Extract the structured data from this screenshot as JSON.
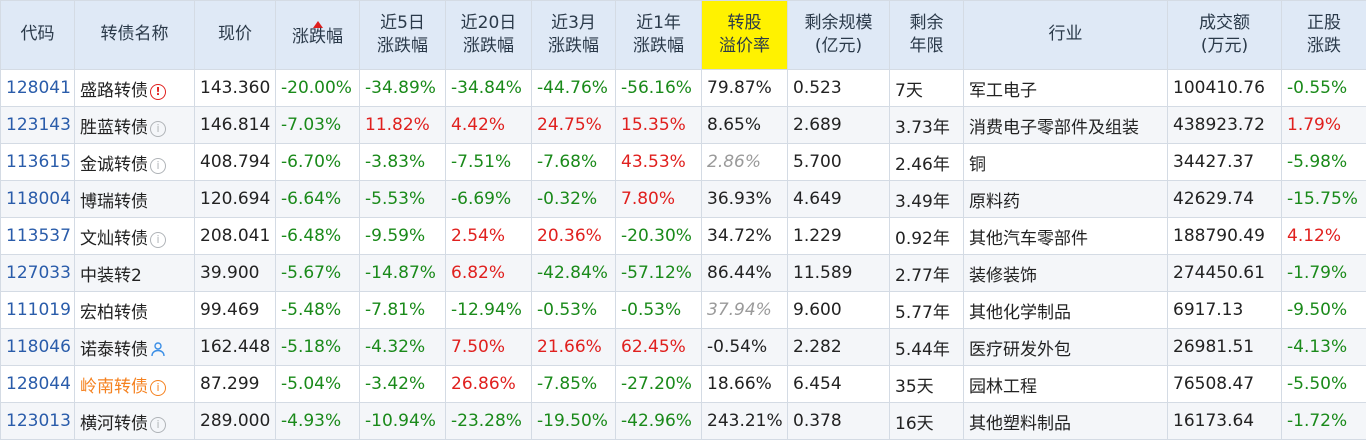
{
  "colors": {
    "header_bg": "#dfe9f6",
    "highlight_header_bg": "#fff200",
    "up": "#e0201e",
    "down": "#1a8a1a",
    "code": "#2a5caa",
    "muted": "#9a9a9a",
    "orange_name": "#f58220"
  },
  "headers": [
    "代码",
    "转债名称",
    "现价",
    "涨跌幅",
    "近5日\n涨跌幅",
    "近20日\n涨跌幅",
    "近3月\n涨跌幅",
    "近1年\n涨跌幅",
    "转股\n溢价率",
    "剩余规模\n(亿元)",
    "剩余\n年限",
    "行业",
    "成交额\n(万元)",
    "正股\n涨跌"
  ],
  "sorted_column": "涨跌幅",
  "rows": [
    {
      "code": "128041",
      "name": "盛路转债",
      "name_icon": "warning-icon",
      "name_color": "default",
      "price": "143.360",
      "chg": "-20.00%",
      "chg5": "-34.89%",
      "chg20": "-34.84%",
      "chg3m": "-44.76%",
      "chg1y": "-56.16%",
      "premium": "79.87%",
      "premium_muted": false,
      "scale": "0.523",
      "years": "7天",
      "industry": "军工电子",
      "volume": "100410.76",
      "stock_chg": "-0.55%"
    },
    {
      "code": "123143",
      "name": "胜蓝转债",
      "name_icon": "info-icon",
      "name_color": "default",
      "price": "146.814",
      "chg": "-7.03%",
      "chg5": "11.82%",
      "chg20": "4.42%",
      "chg3m": "24.75%",
      "chg1y": "15.35%",
      "premium": "8.65%",
      "premium_muted": false,
      "scale": "2.689",
      "years": "3.73年",
      "industry": "消费电子零部件及组装",
      "volume": "438923.72",
      "stock_chg": "1.79%"
    },
    {
      "code": "113615",
      "name": "金诚转债",
      "name_icon": "info-icon",
      "name_color": "default",
      "price": "408.794",
      "chg": "-6.70%",
      "chg5": "-3.83%",
      "chg20": "-7.51%",
      "chg3m": "-7.68%",
      "chg1y": "43.53%",
      "premium": "2.86%",
      "premium_muted": true,
      "scale": "5.700",
      "years": "2.46年",
      "industry": "铜",
      "volume": "34427.37",
      "stock_chg": "-5.98%"
    },
    {
      "code": "118004",
      "name": "博瑞转债",
      "name_icon": "",
      "name_color": "default",
      "price": "120.694",
      "chg": "-6.64%",
      "chg5": "-5.53%",
      "chg20": "-6.69%",
      "chg3m": "-0.32%",
      "chg1y": "7.80%",
      "premium": "36.93%",
      "premium_muted": false,
      "scale": "4.649",
      "years": "3.49年",
      "industry": "原料药",
      "volume": "42629.74",
      "stock_chg": "-15.75%"
    },
    {
      "code": "113537",
      "name": "文灿转债",
      "name_icon": "info-icon",
      "name_color": "default",
      "price": "208.041",
      "chg": "-6.48%",
      "chg5": "-9.59%",
      "chg20": "2.54%",
      "chg3m": "20.36%",
      "chg1y": "-20.30%",
      "premium": "34.72%",
      "premium_muted": false,
      "scale": "1.229",
      "years": "0.92年",
      "industry": "其他汽车零部件",
      "volume": "188790.49",
      "stock_chg": "4.12%"
    },
    {
      "code": "127033",
      "name": "中装转2",
      "name_icon": "",
      "name_color": "default",
      "price": "39.900",
      "chg": "-5.67%",
      "chg5": "-14.87%",
      "chg20": "6.82%",
      "chg3m": "-42.84%",
      "chg1y": "-57.12%",
      "premium": "86.44%",
      "premium_muted": false,
      "scale": "11.589",
      "years": "2.77年",
      "industry": "装修装饰",
      "volume": "274450.61",
      "stock_chg": "-1.79%"
    },
    {
      "code": "111019",
      "name": "宏柏转债",
      "name_icon": "",
      "name_color": "default",
      "price": "99.469",
      "chg": "-5.48%",
      "chg5": "-7.81%",
      "chg20": "-12.94%",
      "chg3m": "-0.53%",
      "chg1y": "-0.53%",
      "premium": "37.94%",
      "premium_muted": true,
      "scale": "9.600",
      "years": "5.77年",
      "industry": "其他化学制品",
      "volume": "6917.13",
      "stock_chg": "-9.50%"
    },
    {
      "code": "118046",
      "name": "诺泰转债",
      "name_icon": "person-icon",
      "name_color": "default",
      "price": "162.448",
      "chg": "-5.18%",
      "chg5": "-4.32%",
      "chg20": "7.50%",
      "chg3m": "21.66%",
      "chg1y": "62.45%",
      "premium": "-0.54%",
      "premium_muted": false,
      "scale": "2.282",
      "years": "5.44年",
      "industry": "医疗研发外包",
      "volume": "26981.51",
      "stock_chg": "-4.13%"
    },
    {
      "code": "128044",
      "name": "岭南转债",
      "name_icon": "info-icon-orange",
      "name_color": "orange",
      "price": "87.299",
      "chg": "-5.04%",
      "chg5": "-3.42%",
      "chg20": "26.86%",
      "chg3m": "-7.85%",
      "chg1y": "-27.20%",
      "premium": "18.66%",
      "premium_muted": false,
      "scale": "6.454",
      "years": "35天",
      "industry": "园林工程",
      "volume": "76508.47",
      "stock_chg": "-5.50%"
    },
    {
      "code": "123013",
      "name": "横河转债",
      "name_icon": "info-icon",
      "name_color": "default",
      "price": "289.000",
      "chg": "-4.93%",
      "chg5": "-10.94%",
      "chg20": "-23.28%",
      "chg3m": "-19.50%",
      "chg1y": "-42.96%",
      "premium": "243.21%",
      "premium_muted": false,
      "scale": "0.378",
      "years": "16天",
      "industry": "其他塑料制品",
      "volume": "16173.64",
      "stock_chg": "-1.72%"
    }
  ]
}
